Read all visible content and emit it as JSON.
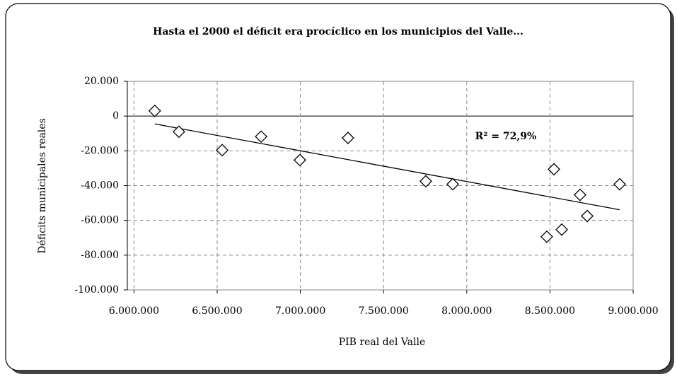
{
  "chart_data": {
    "type": "scatter",
    "title": "Hasta el 2000 el déficit era procíclico en los municipios del  Valle...",
    "x_label": "PIB real  del Valle",
    "y_label": "Déficits municipales reales",
    "annotation": "R² = 72,9%",
    "x": [
      6125000,
      6270000,
      6530000,
      6764000,
      6997000,
      7286000,
      7754000,
      7916000,
      8481000,
      8524000,
      8571000,
      8681000,
      8724000,
      8919000
    ],
    "values": [
      3000,
      -9000,
      -19600,
      -11800,
      -25300,
      -12600,
      -37500,
      -39200,
      -69400,
      -30600,
      -65300,
      -45300,
      -57500,
      -39200
    ],
    "color": "#000000",
    "trendline": {
      "x": [
        6125000,
        8919000
      ],
      "values": [
        -4500,
        -53900
      ]
    },
    "xlim": [
      5960000,
      9000000
    ],
    "xticks": [
      {
        "value": 6000000,
        "label": "6.000.000"
      },
      {
        "value": 6500000,
        "label": "6.500.000"
      },
      {
        "value": 7000000,
        "label": "7.000.000"
      },
      {
        "value": 7500000,
        "label": "7.500.000"
      },
      {
        "value": 8000000,
        "label": "8.000.000"
      },
      {
        "value": 8500000,
        "label": "8.500.000"
      },
      {
        "value": 9000000,
        "label": "9.000.000"
      }
    ],
    "ylim": [
      -100000,
      20000
    ],
    "yticks": [
      {
        "value": 20000,
        "label": "20.000"
      },
      0,
      {
        "value": -20000,
        "label": "-20.000"
      },
      {
        "value": -40000,
        "label": "-40.000"
      },
      {
        "value": -60000,
        "label": "-60.000"
      },
      {
        "value": -80000,
        "label": "-80.000"
      },
      {
        "value": -100000,
        "label": "-100.000"
      }
    ],
    "grid": true
  }
}
